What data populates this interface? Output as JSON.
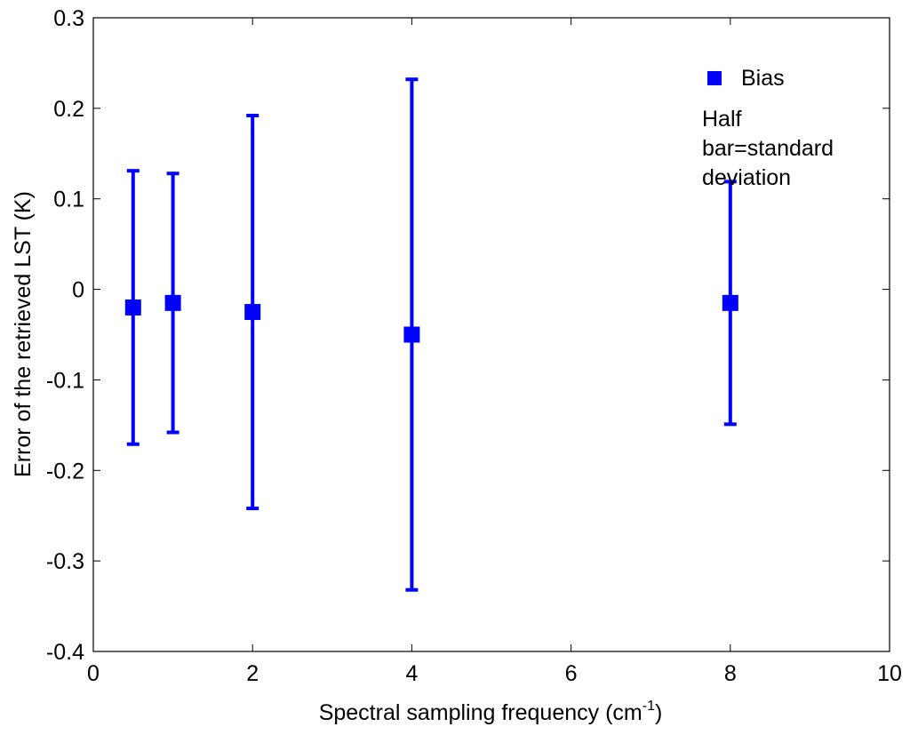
{
  "chart_data": {
    "type": "scatter",
    "title": "",
    "xlabel": "Spectral sampling frequency (cm",
    "xlabel_sup": "-1",
    "xlabel_end": ")",
    "ylabel": "Error of the retrieved LST (K)",
    "xlim": [
      0,
      10
    ],
    "ylim": [
      -0.4,
      0.3
    ],
    "xticks": [
      0,
      2,
      4,
      6,
      8,
      10
    ],
    "yticks": [
      -0.4,
      -0.3,
      -0.2,
      -0.1,
      0,
      0.1,
      0.2,
      0.3
    ],
    "xtick_labels": [
      "0",
      "2",
      "4",
      "6",
      "8",
      "10"
    ],
    "ytick_labels": [
      "-0.4",
      "-0.3",
      "-0.2",
      "-0.1",
      "0",
      "0.1",
      "0.2",
      "0.3"
    ],
    "grid": false,
    "legend_position": "top-right",
    "series": [
      {
        "name": "Bias",
        "color": "#0000ff",
        "marker": "square",
        "x": [
          0.5,
          1,
          2,
          4,
          8
        ],
        "y": [
          -0.02,
          -0.015,
          -0.025,
          -0.05,
          -0.015
        ],
        "error": [
          0.151,
          0.143,
          0.217,
          0.282,
          0.134
        ]
      }
    ],
    "legend_note": [
      "Half",
      "bar=standard",
      "deviation"
    ]
  }
}
